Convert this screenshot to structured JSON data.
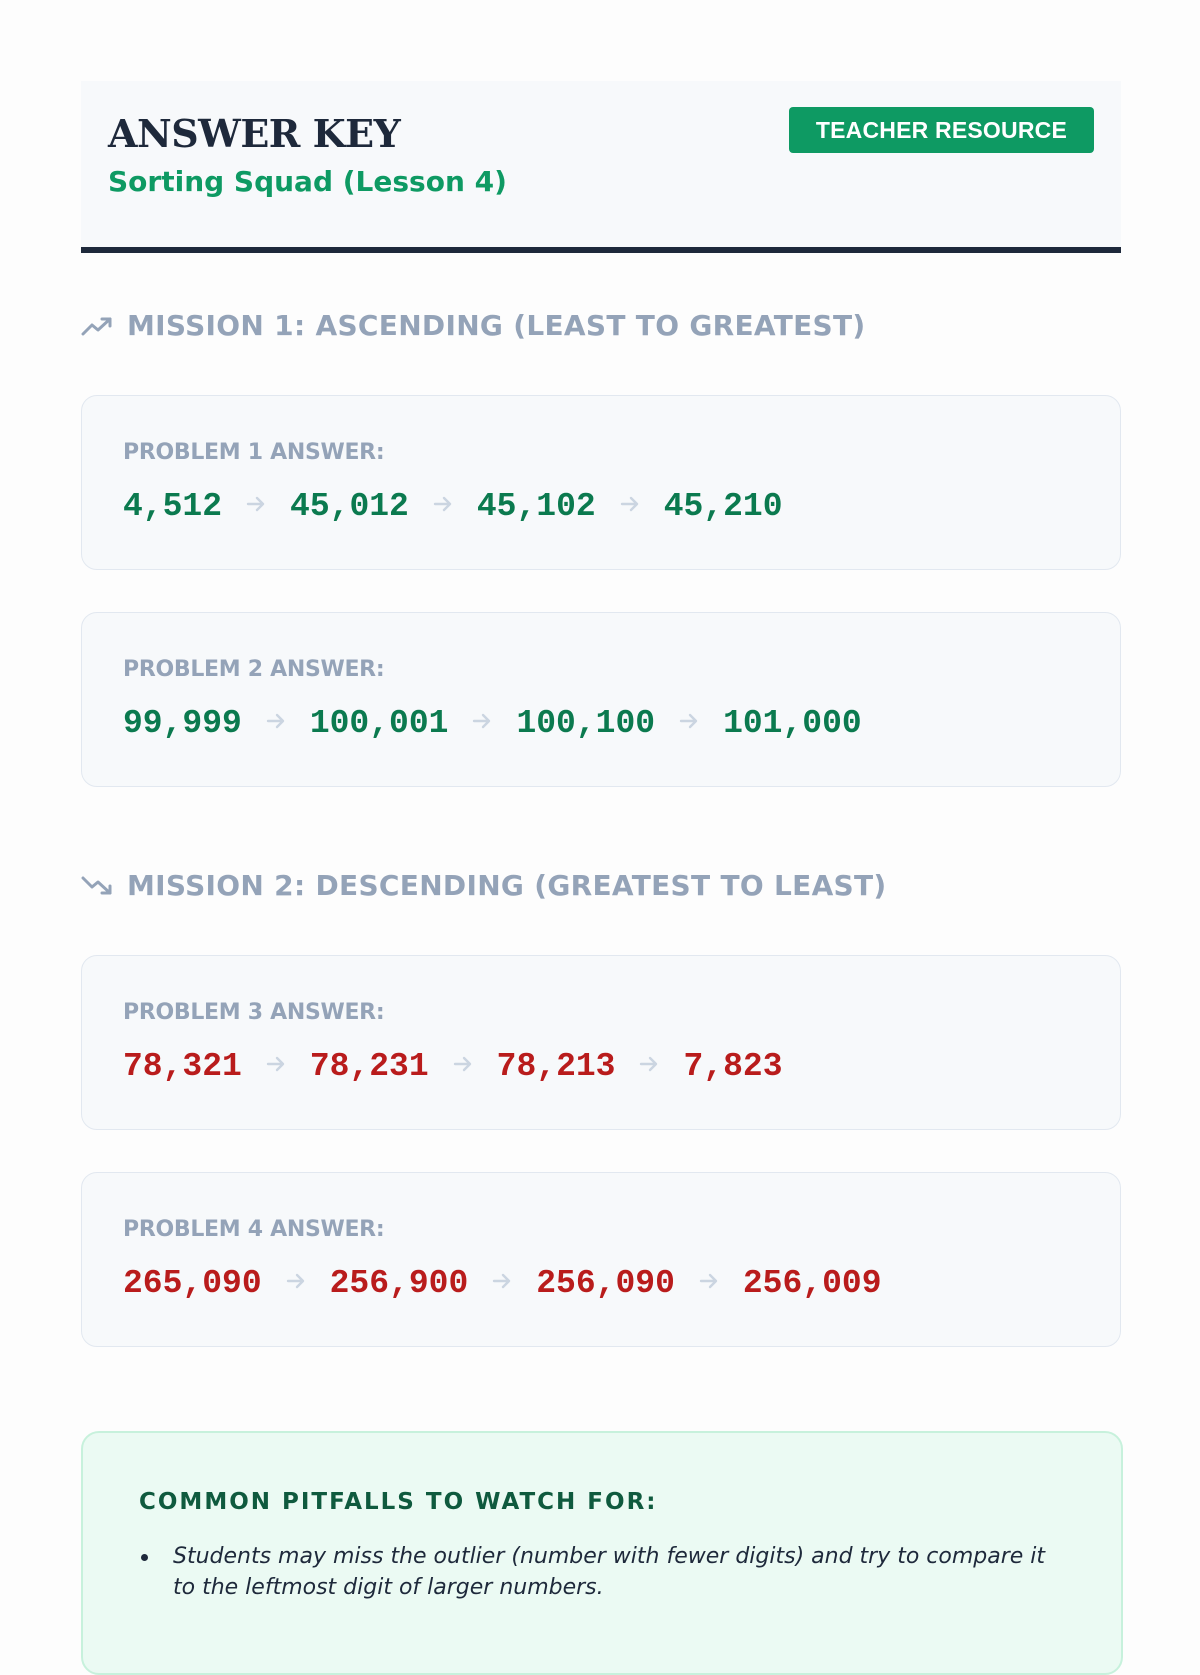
{
  "header": {
    "title": "ANSWER KEY",
    "subtitle": "Sorting Squad (Lesson 4)",
    "badge": "TEACHER RESOURCE"
  },
  "missions": [
    {
      "title": "MISSION 1: ASCENDING (LEAST TO GREATEST)",
      "icon": "trending-up-icon",
      "color": "#0b7a4f",
      "problems": [
        {
          "label": "PROBLEM 1 ANSWER:",
          "numbers": [
            "4,512",
            "45,012",
            "45,102",
            "45,210"
          ]
        },
        {
          "label": "PROBLEM 2 ANSWER:",
          "numbers": [
            "99,999",
            "100,001",
            "100,100",
            "101,000"
          ]
        }
      ]
    },
    {
      "title": "MISSION 2: DESCENDING (GREATEST TO LEAST)",
      "icon": "trending-down-icon",
      "color": "#b91c1c",
      "problems": [
        {
          "label": "PROBLEM 3 ANSWER:",
          "numbers": [
            "78,321",
            "78,231",
            "78,213",
            "7,823"
          ]
        },
        {
          "label": "PROBLEM 4 ANSWER:",
          "numbers": [
            "265,090",
            "256,900",
            "256,090",
            "256,009"
          ]
        }
      ]
    }
  ],
  "pitfalls": {
    "title": "COMMON PITFALLS TO WATCH FOR:",
    "items": [
      "Students may miss the outlier (number with fewer digits) and try to compare it to the leftmost digit of larger numbers."
    ]
  }
}
